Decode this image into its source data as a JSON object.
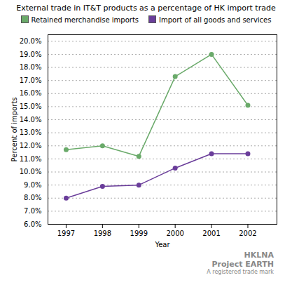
{
  "chart_data": {
    "type": "line",
    "title": "External trade in IT&T products as a percentage of HK import trade",
    "x_label": "Year",
    "y_label": "Percent of imports",
    "x": [
      1997,
      1998,
      1999,
      2000,
      2001,
      2002
    ],
    "series": [
      {
        "name": "Retained merchandise imports",
        "color": "#6aaa6a",
        "values": [
          0.117,
          0.12,
          0.112,
          0.173,
          0.19,
          0.151
        ],
        "marker": "o",
        "line_style": "solid"
      },
      {
        "name": "Import of all goods and services",
        "color": "#6a3d9a",
        "values": [
          0.08,
          0.089,
          0.09,
          0.103,
          0.114,
          0.114
        ],
        "marker": "o",
        "line_style": "solid"
      }
    ],
    "xlim": [
      1996.5,
      2002.8
    ],
    "xticks": [
      1997,
      1998,
      1999,
      2000,
      2001,
      2002
    ],
    "ylim": [
      0.06,
      0.205
    ],
    "yticks": [
      {
        "value": 0.06,
        "label": "6.0%"
      },
      {
        "value": 0.07,
        "label": "7.0%"
      },
      {
        "value": 0.08,
        "label": "8.0%"
      },
      {
        "value": 0.09,
        "label": "9.0%"
      },
      {
        "value": 0.1,
        "label": "10.0%"
      },
      {
        "value": 0.11,
        "label": "11.0%"
      },
      {
        "value": 0.12,
        "label": "12.0%"
      },
      {
        "value": 0.13,
        "label": "13.0%"
      },
      {
        "value": 0.14,
        "label": "14.0%"
      },
      {
        "value": 0.15,
        "label": "15.0%"
      },
      {
        "value": 0.16,
        "label": "16.0%"
      },
      {
        "value": 0.17,
        "label": "17.0%"
      },
      {
        "value": 0.18,
        "label": "18.0%"
      },
      {
        "value": 0.19,
        "label": "19.0%"
      },
      {
        "value": 0.2,
        "label": "20.0%"
      }
    ],
    "grid": true,
    "legend": "top",
    "annotations": [
      "HKLNA",
      "Project",
      "EARTH",
      "A registered trade mark"
    ]
  }
}
